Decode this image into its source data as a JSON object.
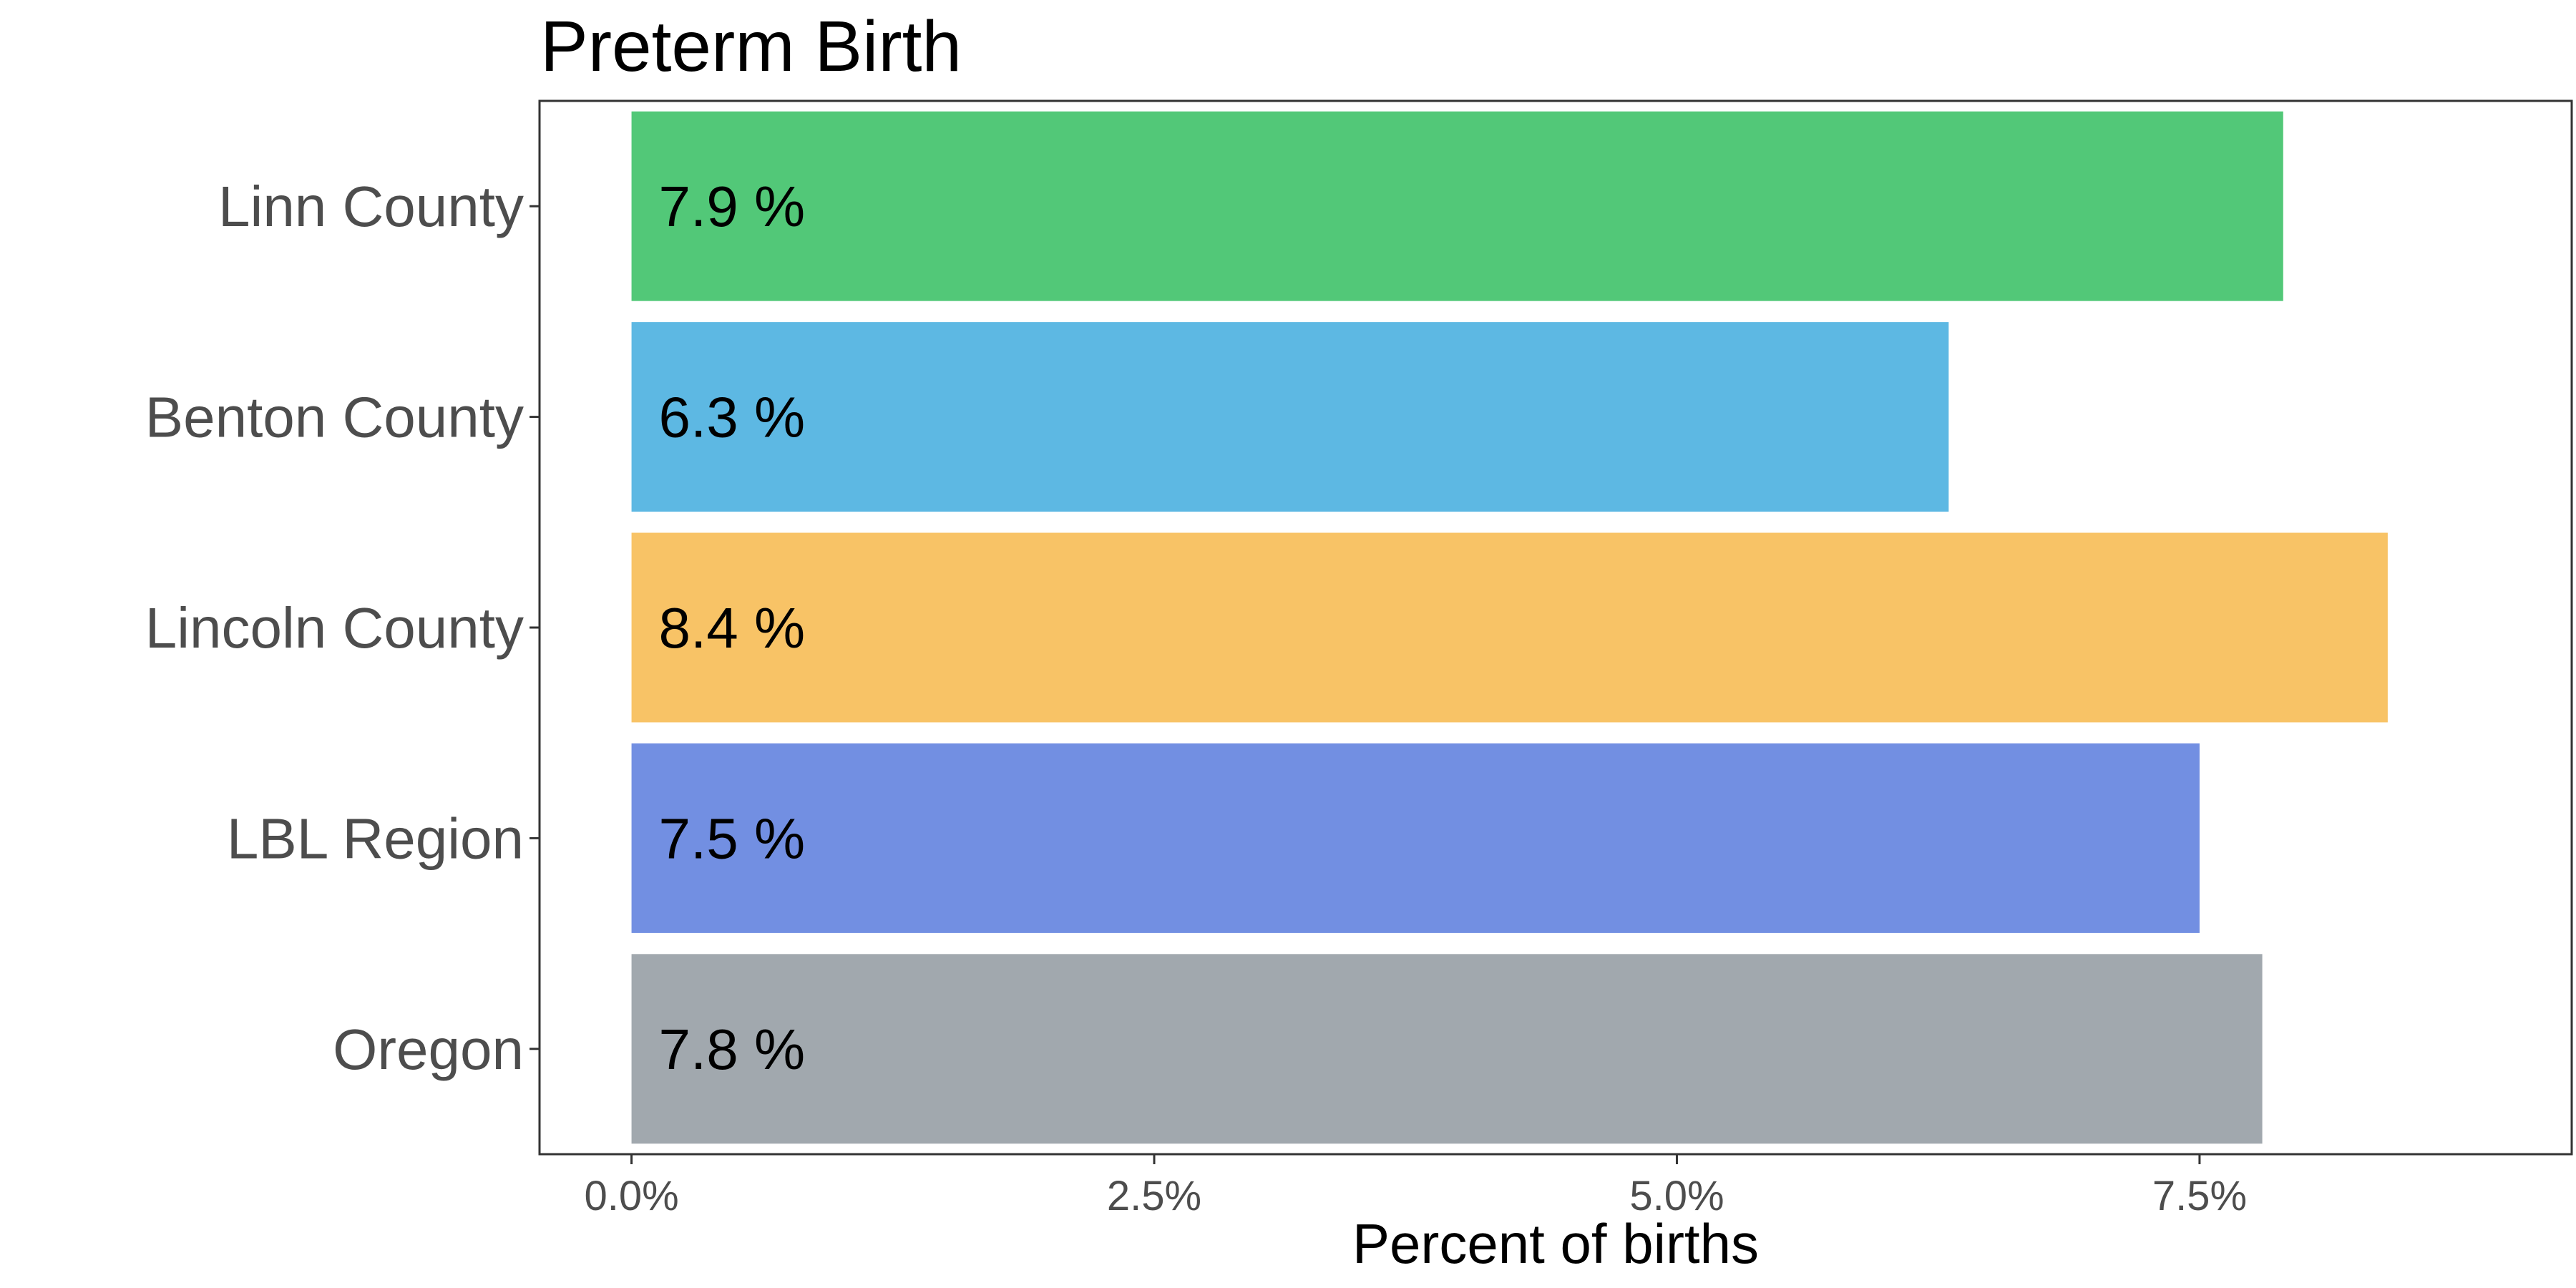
{
  "chart_data": {
    "type": "bar",
    "orientation": "horizontal",
    "title": "Preterm Birth",
    "xlabel": "Percent of births",
    "ylabel": "",
    "categories": [
      "Linn County",
      "Benton County",
      "Lincoln County",
      "LBL Region",
      "Oregon"
    ],
    "values": [
      7.9,
      6.3,
      8.4,
      7.5,
      7.8
    ],
    "data_labels": [
      "7.9 %",
      "6.3 %",
      "8.4 %",
      "7.5 %",
      "7.8 %"
    ],
    "colors": [
      "#52c878",
      "#5db8e3",
      "#f8c366",
      "#728fe2",
      "#a1a8ae"
    ],
    "xlim": [
      -0.44,
      9.28
    ],
    "xticks": [
      0,
      2.5,
      5,
      7.5
    ],
    "xtick_labels": [
      "0.0%",
      "2.5%",
      "5.0%",
      "7.5%"
    ],
    "grid": false,
    "legend": "none"
  }
}
